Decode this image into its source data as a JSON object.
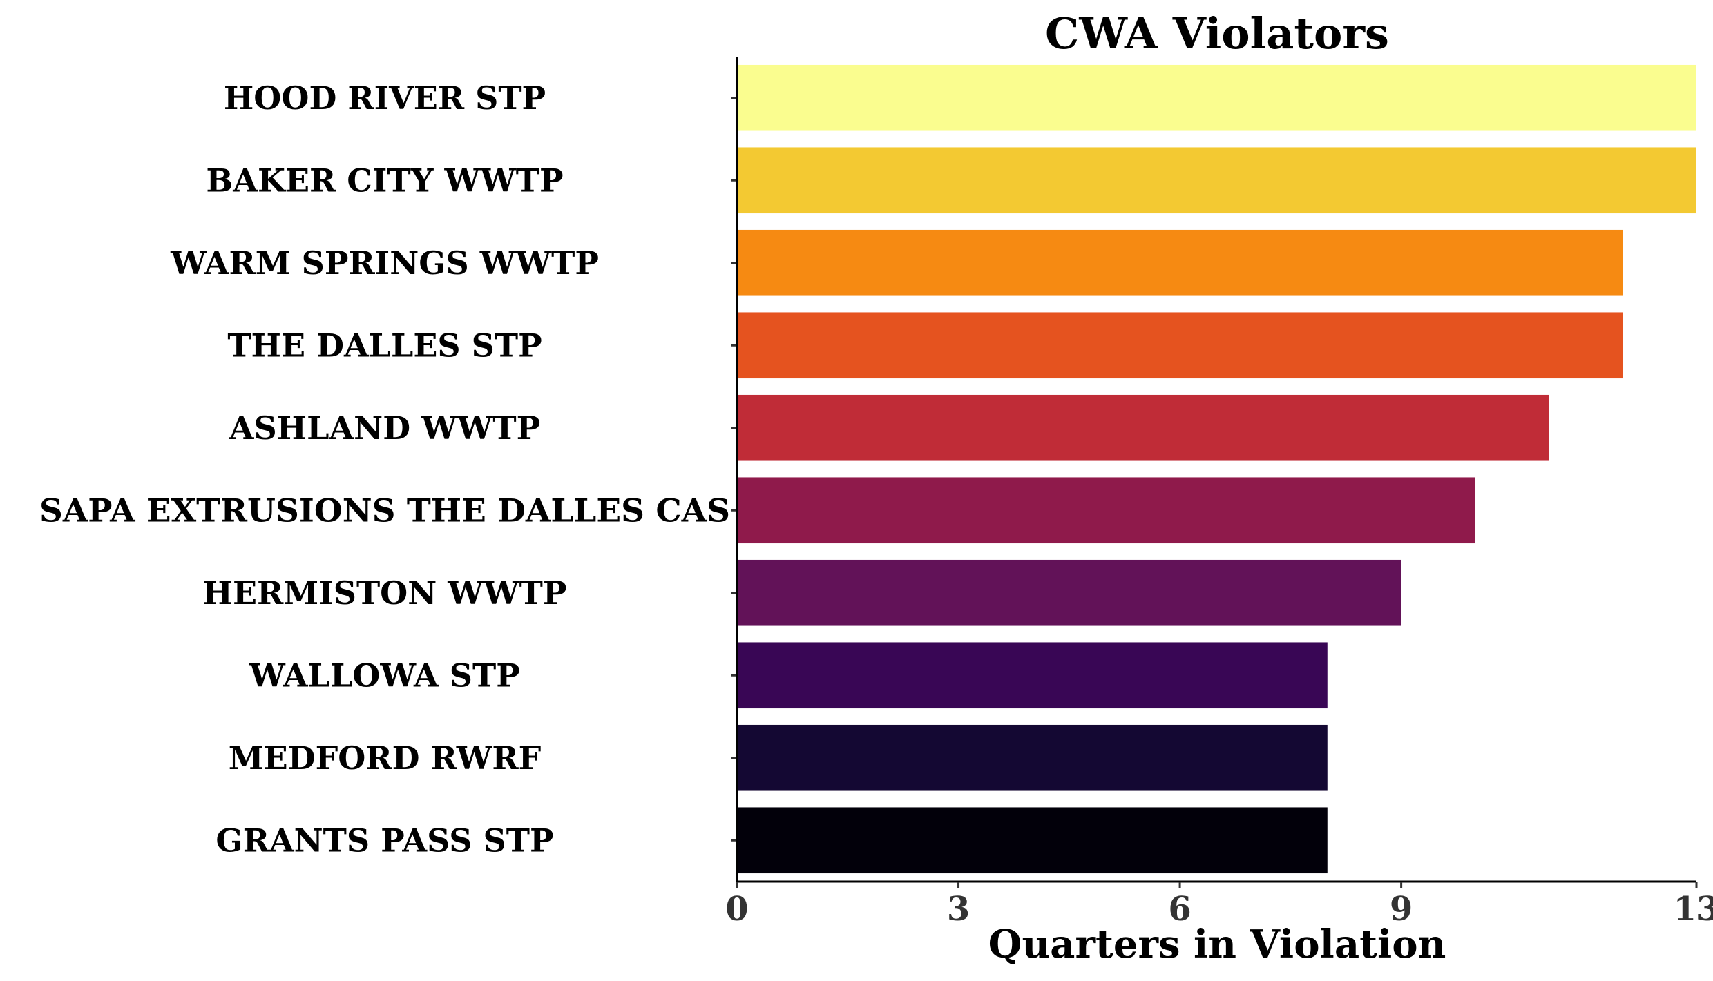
{
  "chart_data": {
    "type": "bar",
    "orientation": "horizontal",
    "title": "CWA Violators",
    "xlabel": "Quarters in Violation",
    "ylabel": "",
    "xlim": [
      0,
      13
    ],
    "xticks": [
      0,
      3,
      6,
      9,
      13
    ],
    "grid": false,
    "legend": "none",
    "categories": [
      "HOOD RIVER STP",
      "BAKER CITY WWTP",
      "WARM SPRINGS WWTP",
      "THE DALLES STP",
      "ASHLAND WWTP",
      "SAPA EXTRUSIONS THE DALLES CAS",
      "HERMISTON WWTP",
      "WALLOWA STP",
      "MEDFORD RWRF",
      "GRANTS PASS STP"
    ],
    "values": [
      13,
      13,
      12,
      12,
      11,
      10,
      9,
      8,
      8,
      8
    ],
    "colors": [
      "#fafd8f",
      "#f3c932",
      "#f68a12",
      "#e5531f",
      "#c02c37",
      "#8f1a4b",
      "#621258",
      "#390655",
      "#140833",
      "#02000a"
    ]
  }
}
